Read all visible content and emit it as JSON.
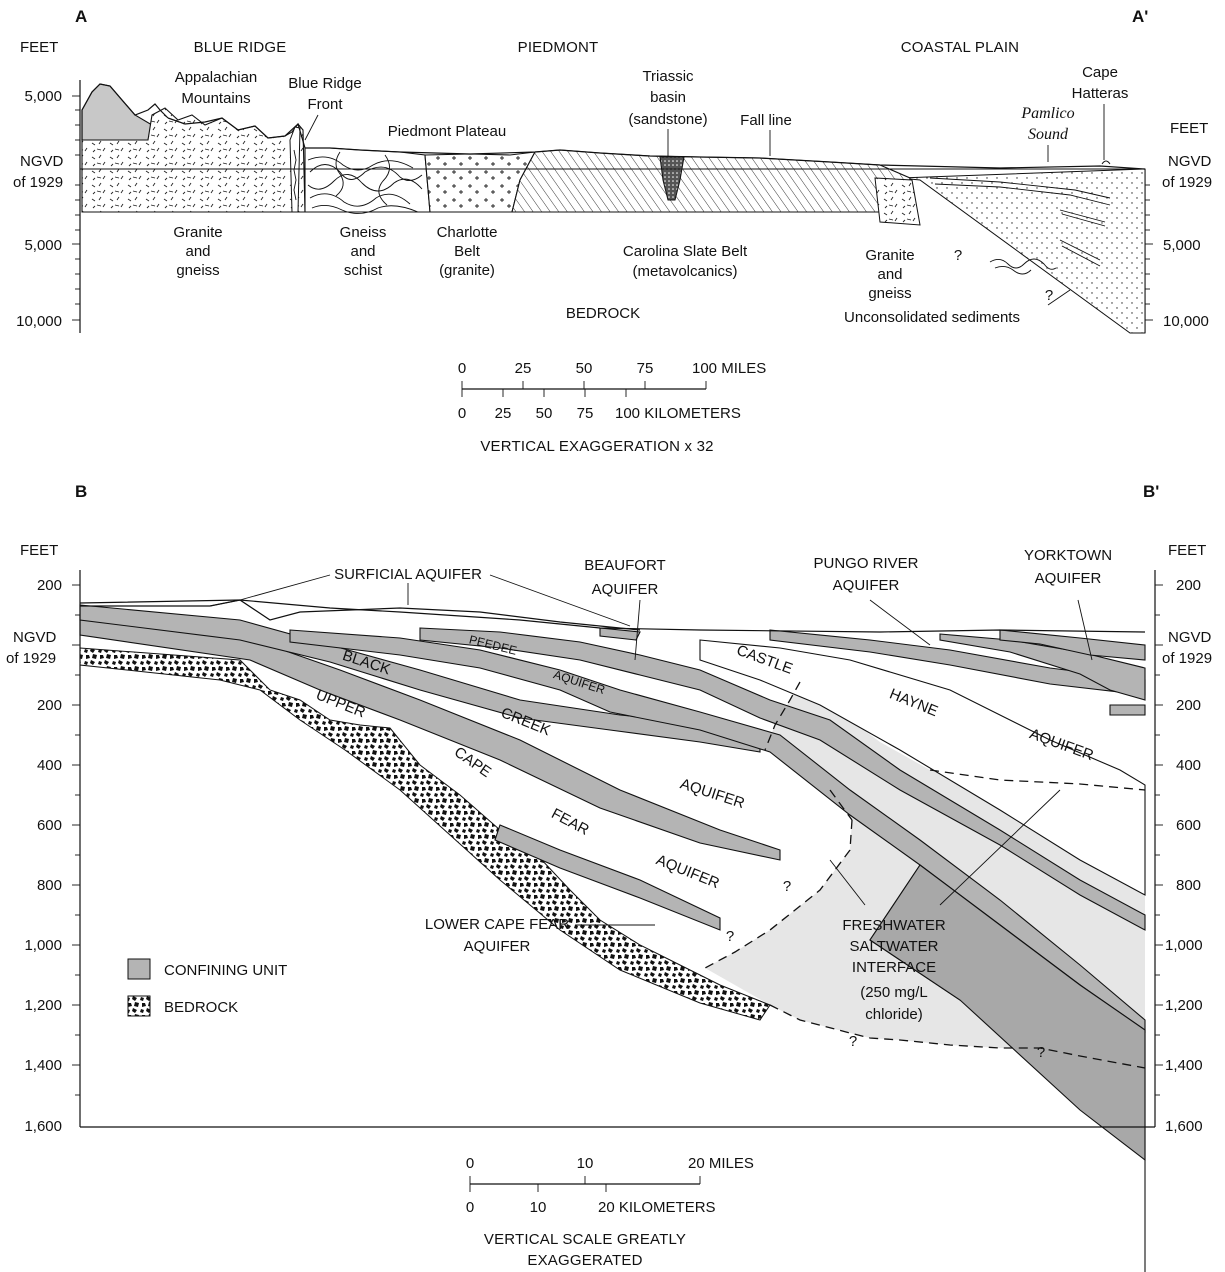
{
  "section_a": {
    "left_label": "A",
    "right_label": "A'",
    "axis_unit_left": "FEET",
    "axis_unit_right": "FEET",
    "datum_left_1": "NGVD",
    "datum_left_2": "of 1929",
    "datum_right_1": "NGVD",
    "datum_right_2": "of 1929",
    "ticks_left": [
      "5,000",
      "5,000",
      "10,000"
    ],
    "ticks_right": [
      "5,000",
      "10,000"
    ],
    "provinces": [
      "BLUE RIDGE",
      "PIEDMONT",
      "COASTAL PLAIN"
    ],
    "appalachian": [
      "Appalachian",
      "Mountains"
    ],
    "blue_ridge_front": [
      "Blue Ridge",
      "Front"
    ],
    "piedmont_plateau": "Piedmont Plateau",
    "triassic": [
      "Triassic",
      "basin",
      "(sandstone)"
    ],
    "fall_line": "Fall line",
    "cape_hatteras": [
      "Cape",
      "Hatteras"
    ],
    "pamlico": [
      "Pamlico",
      "Sound"
    ],
    "granite_1": [
      "Granite",
      "and",
      "gneiss"
    ],
    "gneiss_schist": [
      "Gneiss",
      "and",
      "schist"
    ],
    "charlotte": [
      "Charlotte",
      "Belt",
      "(granite)"
    ],
    "carolina": [
      "Carolina Slate Belt",
      "(metavolcanics)"
    ],
    "granite_2": [
      "Granite",
      "and",
      "gneiss"
    ],
    "question": "?",
    "bedrock": "BEDROCK",
    "unconsolidated": "Unconsolidated sediments",
    "scale_miles": [
      "0",
      "25",
      "50",
      "75",
      "100 MILES"
    ],
    "scale_km": [
      "0",
      "25",
      "50",
      "75",
      "100 KILOMETERS"
    ],
    "exaggeration": "VERTICAL EXAGGERATION x 32"
  },
  "section_b": {
    "left_label": "B",
    "right_label": "B'",
    "axis_unit_left": "FEET",
    "axis_unit_right": "FEET",
    "datum_left_1": "NGVD",
    "datum_left_2": "of 1929",
    "datum_right_1": "NGVD",
    "datum_right_2": "of 1929",
    "ticks_upper": [
      "200"
    ],
    "ticks_lower": [
      "200",
      "400",
      "600",
      "800",
      "1,000",
      "1,200",
      "1,400",
      "1,600"
    ],
    "surficial": "SURFICIAL AQUIFER",
    "beaufort": [
      "BEAUFORT",
      "AQUIFER"
    ],
    "pungo": [
      "PUNGO RIVER",
      "AQUIFER"
    ],
    "yorktown": [
      "YORKTOWN",
      "AQUIFER"
    ],
    "peedee": [
      "PEEDEE",
      "AQUIFER"
    ],
    "black_creek": [
      "BLACK",
      "CREEK",
      "AQUIFER"
    ],
    "upper_cape_fear": [
      "UPPER",
      "CAPE",
      "FEAR",
      "AQUIFER"
    ],
    "castle_hayne": [
      "CASTLE",
      "HAYNE",
      "AQUIFER"
    ],
    "lower_cape_fear": [
      "LOWER CAPE FEAR",
      "AQUIFER"
    ],
    "interface": [
      "FRESHWATER",
      "SALTWATER",
      "INTERFACE",
      "(250 mg/L",
      "chloride)"
    ],
    "question": "?",
    "legend": [
      "CONFINING UNIT",
      "BEDROCK"
    ],
    "scale_miles": [
      "0",
      "10",
      "20 MILES"
    ],
    "scale_km": [
      "0",
      "10",
      "20 KILOMETERS"
    ],
    "exaggeration": [
      "VERTICAL SCALE GREATLY",
      "EXAGGERATED"
    ]
  },
  "colors": {
    "confining_unit": "#b4b4b4",
    "saltwater": "#e6e6e6",
    "mountain_fill": "#c8c8c8",
    "line": "#111111"
  }
}
